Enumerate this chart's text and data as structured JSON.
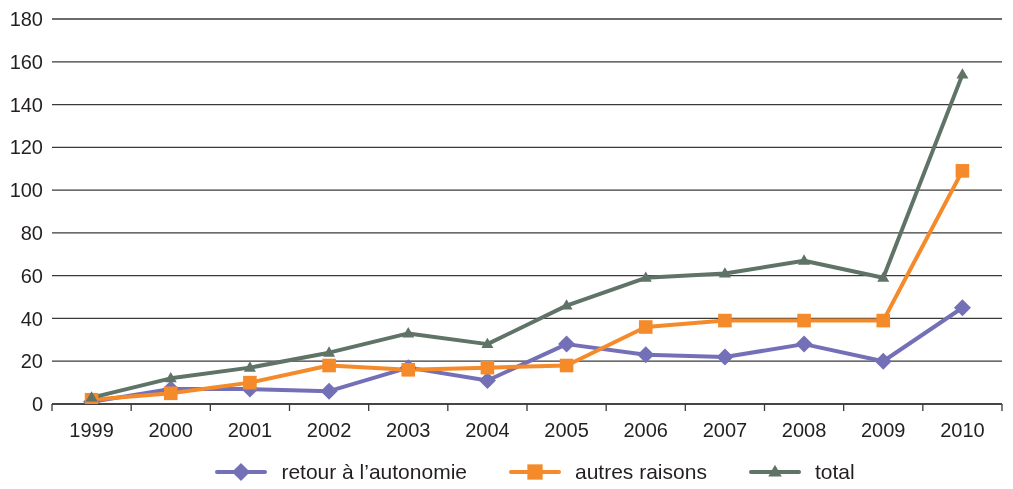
{
  "chart_data": {
    "type": "line",
    "categories": [
      "1999",
      "2000",
      "2001",
      "2002",
      "2003",
      "2004",
      "2005",
      "2006",
      "2007",
      "2008",
      "2009",
      "2010"
    ],
    "series": [
      {
        "name": "retour à l’autonomie",
        "color": "#7470b8",
        "marker": "diamond",
        "values": [
          1,
          7,
          7,
          6,
          17,
          11,
          28,
          23,
          22,
          28,
          20,
          45
        ]
      },
      {
        "name": "autres raisons",
        "color": "#f58a2a",
        "marker": "square",
        "values": [
          2,
          5,
          10,
          18,
          16,
          17,
          18,
          36,
          39,
          39,
          39,
          109
        ]
      },
      {
        "name": "total",
        "color": "#5f7366",
        "marker": "triangle",
        "values": [
          3,
          12,
          17,
          24,
          33,
          28,
          46,
          59,
          61,
          67,
          59,
          154
        ]
      }
    ],
    "ylim": [
      0,
      180
    ],
    "yticks": [
      0,
      20,
      40,
      60,
      80,
      100,
      120,
      140,
      160,
      180
    ],
    "grid": "y",
    "legend": "bottom",
    "line_style": "solid"
  }
}
